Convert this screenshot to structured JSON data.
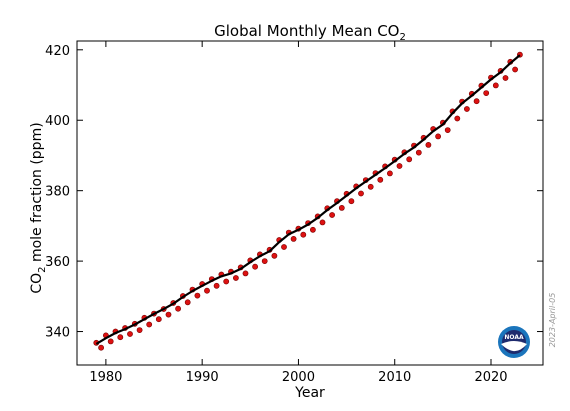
{
  "chart_data": {
    "type": "line",
    "title": "Global Monthly Mean CO",
    "title_subscript": "2",
    "xlabel": "Year",
    "ylabel_prefix": "CO",
    "ylabel_subscript": "2",
    "ylabel_suffix": " mole fraction (ppm)",
    "xlim": [
      1977,
      2025.4
    ],
    "ylim": [
      330.5,
      422.5
    ],
    "x_ticks": [
      1980,
      1990,
      2000,
      2010,
      2020
    ],
    "y_ticks": [
      340,
      360,
      380,
      400,
      420
    ],
    "grid": false,
    "series": [
      {
        "role": "monthly mean (points)",
        "color": "#dd1111",
        "x": [
          1979.0,
          1979.5,
          1980.0,
          1980.5,
          1981.0,
          1981.5,
          1982.0,
          1982.5,
          1983.0,
          1983.5,
          1984.0,
          1984.5,
          1985.0,
          1985.5,
          1986.0,
          1986.5,
          1987.0,
          1987.5,
          1988.0,
          1988.5,
          1989.0,
          1989.5,
          1990.0,
          1990.5,
          1991.0,
          1991.5,
          1992.0,
          1992.5,
          1993.0,
          1993.5,
          1994.0,
          1994.5,
          1995.0,
          1995.5,
          1996.0,
          1996.5,
          1997.0,
          1997.5,
          1998.0,
          1998.5,
          1999.0,
          1999.5,
          2000.0,
          2000.5,
          2001.0,
          2001.5,
          2002.0,
          2002.5,
          2003.0,
          2003.5,
          2004.0,
          2004.5,
          2005.0,
          2005.5,
          2006.0,
          2006.5,
          2007.0,
          2007.5,
          2008.0,
          2008.5,
          2009.0,
          2009.5,
          2010.0,
          2010.5,
          2011.0,
          2011.5,
          2012.0,
          2012.5,
          2013.0,
          2013.5,
          2014.0,
          2014.5,
          2015.0,
          2015.5,
          2016.0,
          2016.5,
          2017.0,
          2017.5,
          2018.0,
          2018.5,
          2019.0,
          2019.5,
          2020.0,
          2020.5,
          2021.0,
          2021.5,
          2022.0,
          2022.5,
          2023.0
        ],
        "values": [
          336.8,
          335.4,
          338.9,
          337.2,
          340.0,
          338.4,
          341.0,
          339.3,
          342.2,
          340.4,
          343.9,
          342.0,
          345.1,
          343.5,
          346.4,
          344.8,
          348.1,
          346.5,
          350.1,
          348.3,
          351.9,
          350.2,
          353.5,
          351.6,
          354.9,
          353.0,
          356.2,
          354.2,
          357.0,
          355.2,
          358.2,
          356.5,
          360.2,
          358.4,
          361.9,
          360.0,
          363.2,
          361.5,
          366.0,
          364.0,
          368.1,
          366.3,
          369.2,
          367.5,
          370.8,
          368.9,
          372.7,
          371.0,
          375.0,
          373.1,
          377.0,
          375.1,
          379.1,
          377.0,
          381.2,
          379.2,
          383.0,
          381.1,
          385.0,
          383.1,
          386.9,
          384.9,
          388.8,
          387.0,
          390.9,
          388.9,
          392.8,
          390.8,
          395.0,
          393.0,
          397.5,
          395.4,
          399.3,
          397.2,
          402.5,
          400.5,
          405.3,
          403.2,
          407.5,
          405.4,
          409.8,
          407.7,
          412.1,
          409.9,
          414.0,
          412.0,
          416.6,
          414.4,
          418.6
        ]
      },
      {
        "role": "trend",
        "color": "#000000",
        "x": [
          1979,
          1980,
          1981,
          1982,
          1983,
          1984,
          1985,
          1986,
          1987,
          1988,
          1989,
          1990,
          1991,
          1992,
          1993,
          1994,
          1995,
          1996,
          1997,
          1998,
          1999,
          2000,
          2001,
          2002,
          2003,
          2004,
          2005,
          2006,
          2007,
          2008,
          2009,
          2010,
          2011,
          2012,
          2013,
          2014,
          2015,
          2016,
          2017,
          2018,
          2019,
          2020,
          2021,
          2022,
          2023
        ],
        "values": [
          336.5,
          338.1,
          339.6,
          340.7,
          342.0,
          343.5,
          345.0,
          346.4,
          347.9,
          349.8,
          351.5,
          353.0,
          354.4,
          355.7,
          356.5,
          357.8,
          359.7,
          361.4,
          362.8,
          365.4,
          367.6,
          368.9,
          370.4,
          372.3,
          374.5,
          376.5,
          378.6,
          380.7,
          382.6,
          384.5,
          386.4,
          388.4,
          390.5,
          392.3,
          394.5,
          396.9,
          398.8,
          402.0,
          404.8,
          407.0,
          409.3,
          411.6,
          413.6,
          416.2,
          418.5
        ]
      }
    ]
  },
  "footer": {
    "date_stamp": "2023-April-05",
    "logo_text": "NOAA",
    "logo_colors": {
      "outer": "#1b75bc",
      "inner": "#1e2b6e",
      "bird": "#ffffff"
    }
  }
}
